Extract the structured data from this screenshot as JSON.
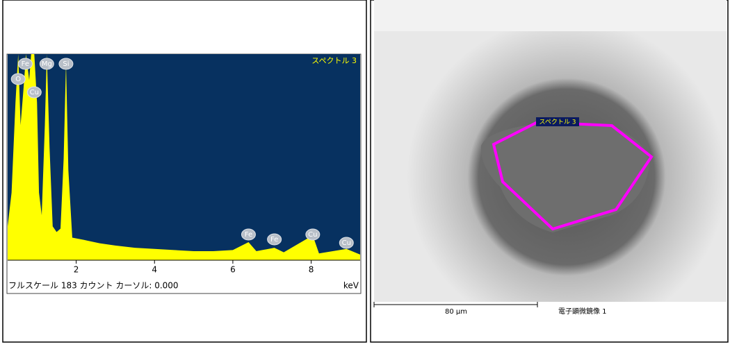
{
  "chart_data": {
    "type": "area",
    "title": "スペクトル 3",
    "x": [
      0.25,
      0.35,
      0.45,
      0.52,
      0.58,
      0.65,
      0.72,
      0.8,
      0.85,
      0.93,
      1.0,
      1.05,
      1.12,
      1.2,
      1.25,
      1.32,
      1.4,
      1.5,
      1.6,
      1.68,
      1.74,
      1.8,
      1.9,
      2.2,
      2.6,
      3.0,
      3.5,
      4.0,
      4.5,
      5.0,
      5.5,
      6.0,
      6.4,
      6.6,
      7.06,
      7.3,
      8.04,
      8.2,
      8.9,
      9.25
    ],
    "values": [
      30,
      60,
      140,
      183,
      120,
      150,
      183,
      160,
      183,
      183,
      140,
      60,
      40,
      120,
      183,
      100,
      30,
      25,
      28,
      90,
      175,
      80,
      20,
      18,
      15,
      13,
      11,
      10,
      9,
      8,
      8,
      9,
      16,
      8,
      11,
      7,
      22,
      6,
      10,
      5
    ],
    "color": "#ffff00",
    "xlim": [
      0.25,
      9.25
    ],
    "ylim": [
      0,
      183
    ],
    "xticks": [
      2,
      4,
      6,
      8
    ],
    "x_label": "keV",
    "status": "フルスケール 183 カウント カーソル: 0.000",
    "annotations": [
      {
        "text": "Fe",
        "x": 0.7
      },
      {
        "text": "Mg",
        "x": 1.25
      },
      {
        "text": "Si",
        "x": 1.74
      },
      {
        "text": "O",
        "x": 0.52
      },
      {
        "text": "Cu",
        "x": 0.93
      },
      {
        "text": "Fe",
        "x": 6.4
      },
      {
        "text": "Fe",
        "x": 7.06
      },
      {
        "text": "Cu",
        "x": 8.04
      },
      {
        "text": "Cu",
        "x": 8.9
      }
    ]
  },
  "image": {
    "region_label": "スペクトル 3",
    "scale_bar": "80 µm",
    "caption": "電子顕微鏡像 1"
  }
}
